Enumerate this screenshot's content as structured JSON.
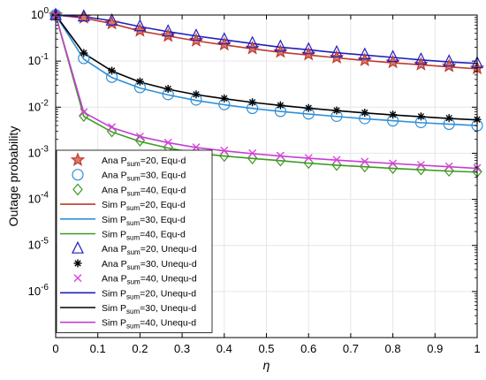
{
  "chart_data": {
    "type": "line",
    "xlabel": "η",
    "ylabel": "Outage probability",
    "xlim": [
      0,
      1
    ],
    "ylim": [
      1e-07,
      1
    ],
    "yscale": "log",
    "grid": true,
    "legend_position": "left",
    "x_ticks": [
      "0",
      "0.1",
      "0.2",
      "0.3",
      "0.4",
      "0.5",
      "0.6",
      "0.7",
      "0.8",
      "0.9",
      "1"
    ],
    "y_tick_exponents": [
      0,
      -1,
      -2,
      -3,
      -4,
      -5,
      -6
    ],
    "x": [
      0,
      0.0667,
      0.1333,
      0.2,
      0.2667,
      0.3333,
      0.4,
      0.4667,
      0.5333,
      0.6,
      0.6667,
      0.7333,
      0.8,
      0.8667,
      0.9333,
      1
    ],
    "series": [
      {
        "name": "Ana P_sum=20, Equ-d",
        "label_main": "Ana P",
        "label_sub": "sum",
        "label_rest": "=20, Equ-d",
        "kind": "marker",
        "marker": "star",
        "color": "#c0392b",
        "values": [
          1.0,
          0.88,
          0.66,
          0.46,
          0.355,
          0.28,
          0.23,
          0.19,
          0.16,
          0.14,
          0.12,
          0.105,
          0.095,
          0.085,
          0.078,
          0.07
        ]
      },
      {
        "name": "Ana P_sum=30, Equ-d",
        "label_main": "Ana P",
        "label_sub": "sum",
        "label_rest": "=30, Equ-d",
        "kind": "marker",
        "marker": "circle",
        "color": "#2f8fd8",
        "values": [
          1.0,
          0.115,
          0.045,
          0.027,
          0.019,
          0.0145,
          0.0115,
          0.0095,
          0.0082,
          0.0072,
          0.0064,
          0.0057,
          0.0051,
          0.0047,
          0.0043,
          0.004
        ]
      },
      {
        "name": "Ana P_sum=40, Equ-d",
        "label_main": "Ana P",
        "label_sub": "sum",
        "label_rest": "=40, Equ-d",
        "kind": "marker",
        "marker": "diamond",
        "color": "#3d9a22",
        "values": [
          1.0,
          0.0065,
          0.003,
          0.0019,
          0.00135,
          0.00105,
          0.00088,
          0.00078,
          0.0007,
          0.00062,
          0.00056,
          0.00052,
          0.00048,
          0.00045,
          0.00042,
          0.0004
        ]
      },
      {
        "name": "Sim P_sum=20, Equ-d",
        "label_main": "Sim P",
        "label_sub": "sum",
        "label_rest": "=20, Equ-d",
        "kind": "line",
        "color": "#c0392b",
        "values": [
          1.0,
          0.86,
          0.65,
          0.45,
          0.35,
          0.275,
          0.225,
          0.185,
          0.155,
          0.135,
          0.118,
          0.103,
          0.092,
          0.083,
          0.075,
          0.068
        ]
      },
      {
        "name": "Sim P_sum=30, Equ-d",
        "label_main": "Sim P",
        "label_sub": "sum",
        "label_rest": "=30, Equ-d",
        "kind": "line",
        "color": "#2f8fd8",
        "values": [
          1.0,
          0.11,
          0.044,
          0.026,
          0.0185,
          0.014,
          0.0113,
          0.0094,
          0.0081,
          0.0071,
          0.0063,
          0.0056,
          0.0051,
          0.0046,
          0.0043,
          0.004
        ]
      },
      {
        "name": "Sim P_sum=40, Equ-d",
        "label_main": "Sim P",
        "label_sub": "sum",
        "label_rest": "=40, Equ-d",
        "kind": "line",
        "color": "#3d9a22",
        "values": [
          1.0,
          0.0063,
          0.0029,
          0.0018,
          0.0013,
          0.001,
          0.00087,
          0.00077,
          0.00069,
          0.00061,
          0.00055,
          0.00051,
          0.00047,
          0.00044,
          0.00041,
          0.00039
        ]
      },
      {
        "name": "Ana P_sum=20, Unequ-d",
        "label_main": "Ana P",
        "label_sub": "sum",
        "label_rest": "=20, Unequ-d",
        "kind": "marker",
        "marker": "triangle",
        "color": "#1f1fbf",
        "values": [
          1.0,
          0.93,
          0.76,
          0.57,
          0.44,
          0.355,
          0.295,
          0.245,
          0.205,
          0.18,
          0.155,
          0.138,
          0.122,
          0.108,
          0.098,
          0.09
        ]
      },
      {
        "name": "Ana P_sum=30, Unequ-d",
        "label_main": "Ana P",
        "label_sub": "sum",
        "label_rest": "=30, Unequ-d",
        "kind": "marker",
        "marker": "asterisk",
        "color": "#000000",
        "values": [
          1.0,
          0.15,
          0.062,
          0.036,
          0.025,
          0.019,
          0.0155,
          0.0128,
          0.011,
          0.0096,
          0.0085,
          0.0076,
          0.0069,
          0.0063,
          0.0058,
          0.0054
        ]
      },
      {
        "name": "Ana P_sum=40, Unequ-d",
        "label_main": "Ana P",
        "label_sub": "sum",
        "label_rest": "=40, Unequ-d",
        "kind": "marker",
        "marker": "x",
        "color": "#e040e0",
        "values": [
          1.0,
          0.0078,
          0.0037,
          0.0023,
          0.0017,
          0.00135,
          0.00115,
          0.001,
          0.00089,
          0.00079,
          0.00072,
          0.00066,
          0.0006,
          0.00056,
          0.00052,
          0.00048
        ]
      },
      {
        "name": "Sim P_sum=20, Unequ-d",
        "label_main": "Sim P",
        "label_sub": "sum",
        "label_rest": "=20, Unequ-d",
        "kind": "line",
        "color": "#1f1fbf",
        "values": [
          1.0,
          0.92,
          0.75,
          0.56,
          0.435,
          0.35,
          0.29,
          0.24,
          0.2,
          0.176,
          0.152,
          0.135,
          0.12,
          0.106,
          0.096,
          0.089
        ]
      },
      {
        "name": "Sim P_sum=30, Unequ-d",
        "label_main": "Sim P",
        "label_sub": "sum",
        "label_rest": "=30, Unequ-d",
        "kind": "line",
        "color": "#000000",
        "values": [
          1.0,
          0.148,
          0.061,
          0.035,
          0.0245,
          0.0187,
          0.0153,
          0.0127,
          0.0109,
          0.0095,
          0.0084,
          0.0075,
          0.0068,
          0.0062,
          0.0057,
          0.0053
        ]
      },
      {
        "name": "Sim P_sum=40, Unequ-d",
        "label_main": "Sim P",
        "label_sub": "sum",
        "label_rest": "=40, Unequ-d",
        "kind": "line",
        "color": "#c33fd6",
        "values": [
          1.0,
          0.0077,
          0.0036,
          0.0023,
          0.0017,
          0.00133,
          0.00113,
          0.00098,
          0.00087,
          0.00078,
          0.00071,
          0.00065,
          0.0006,
          0.00055,
          0.00051,
          0.00047
        ]
      }
    ]
  }
}
